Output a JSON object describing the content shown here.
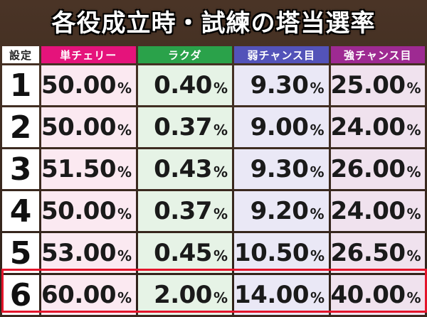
{
  "title": "各役成立時・試練の塔当選率",
  "headers": {
    "setting": "設定",
    "columns": [
      "単チェリー",
      "ラクダ",
      "弱チャンス目",
      "強チャンス目"
    ]
  },
  "rows": [
    {
      "setting": "1",
      "values": [
        "50.00",
        "0.40",
        "9.30",
        "25.00"
      ]
    },
    {
      "setting": "2",
      "values": [
        "50.00",
        "0.37",
        "9.00",
        "24.00"
      ]
    },
    {
      "setting": "3",
      "values": [
        "51.50",
        "0.43",
        "9.30",
        "26.00"
      ]
    },
    {
      "setting": "4",
      "values": [
        "50.00",
        "0.37",
        "9.20",
        "24.00"
      ]
    },
    {
      "setting": "5",
      "values": [
        "53.00",
        "0.45",
        "10.50",
        "26.50"
      ]
    },
    {
      "setting": "6",
      "values": [
        "60.00",
        "2.00",
        "14.00",
        "40.00"
      ]
    }
  ],
  "unit": "%",
  "highlighted_row": "6",
  "colors": {
    "single_cherry": "#e5137b",
    "rakuda": "#2aa24a",
    "weak_chance": "#5353b9",
    "strong_chance": "#9e2a92",
    "highlight_border": "#e3152b"
  }
}
